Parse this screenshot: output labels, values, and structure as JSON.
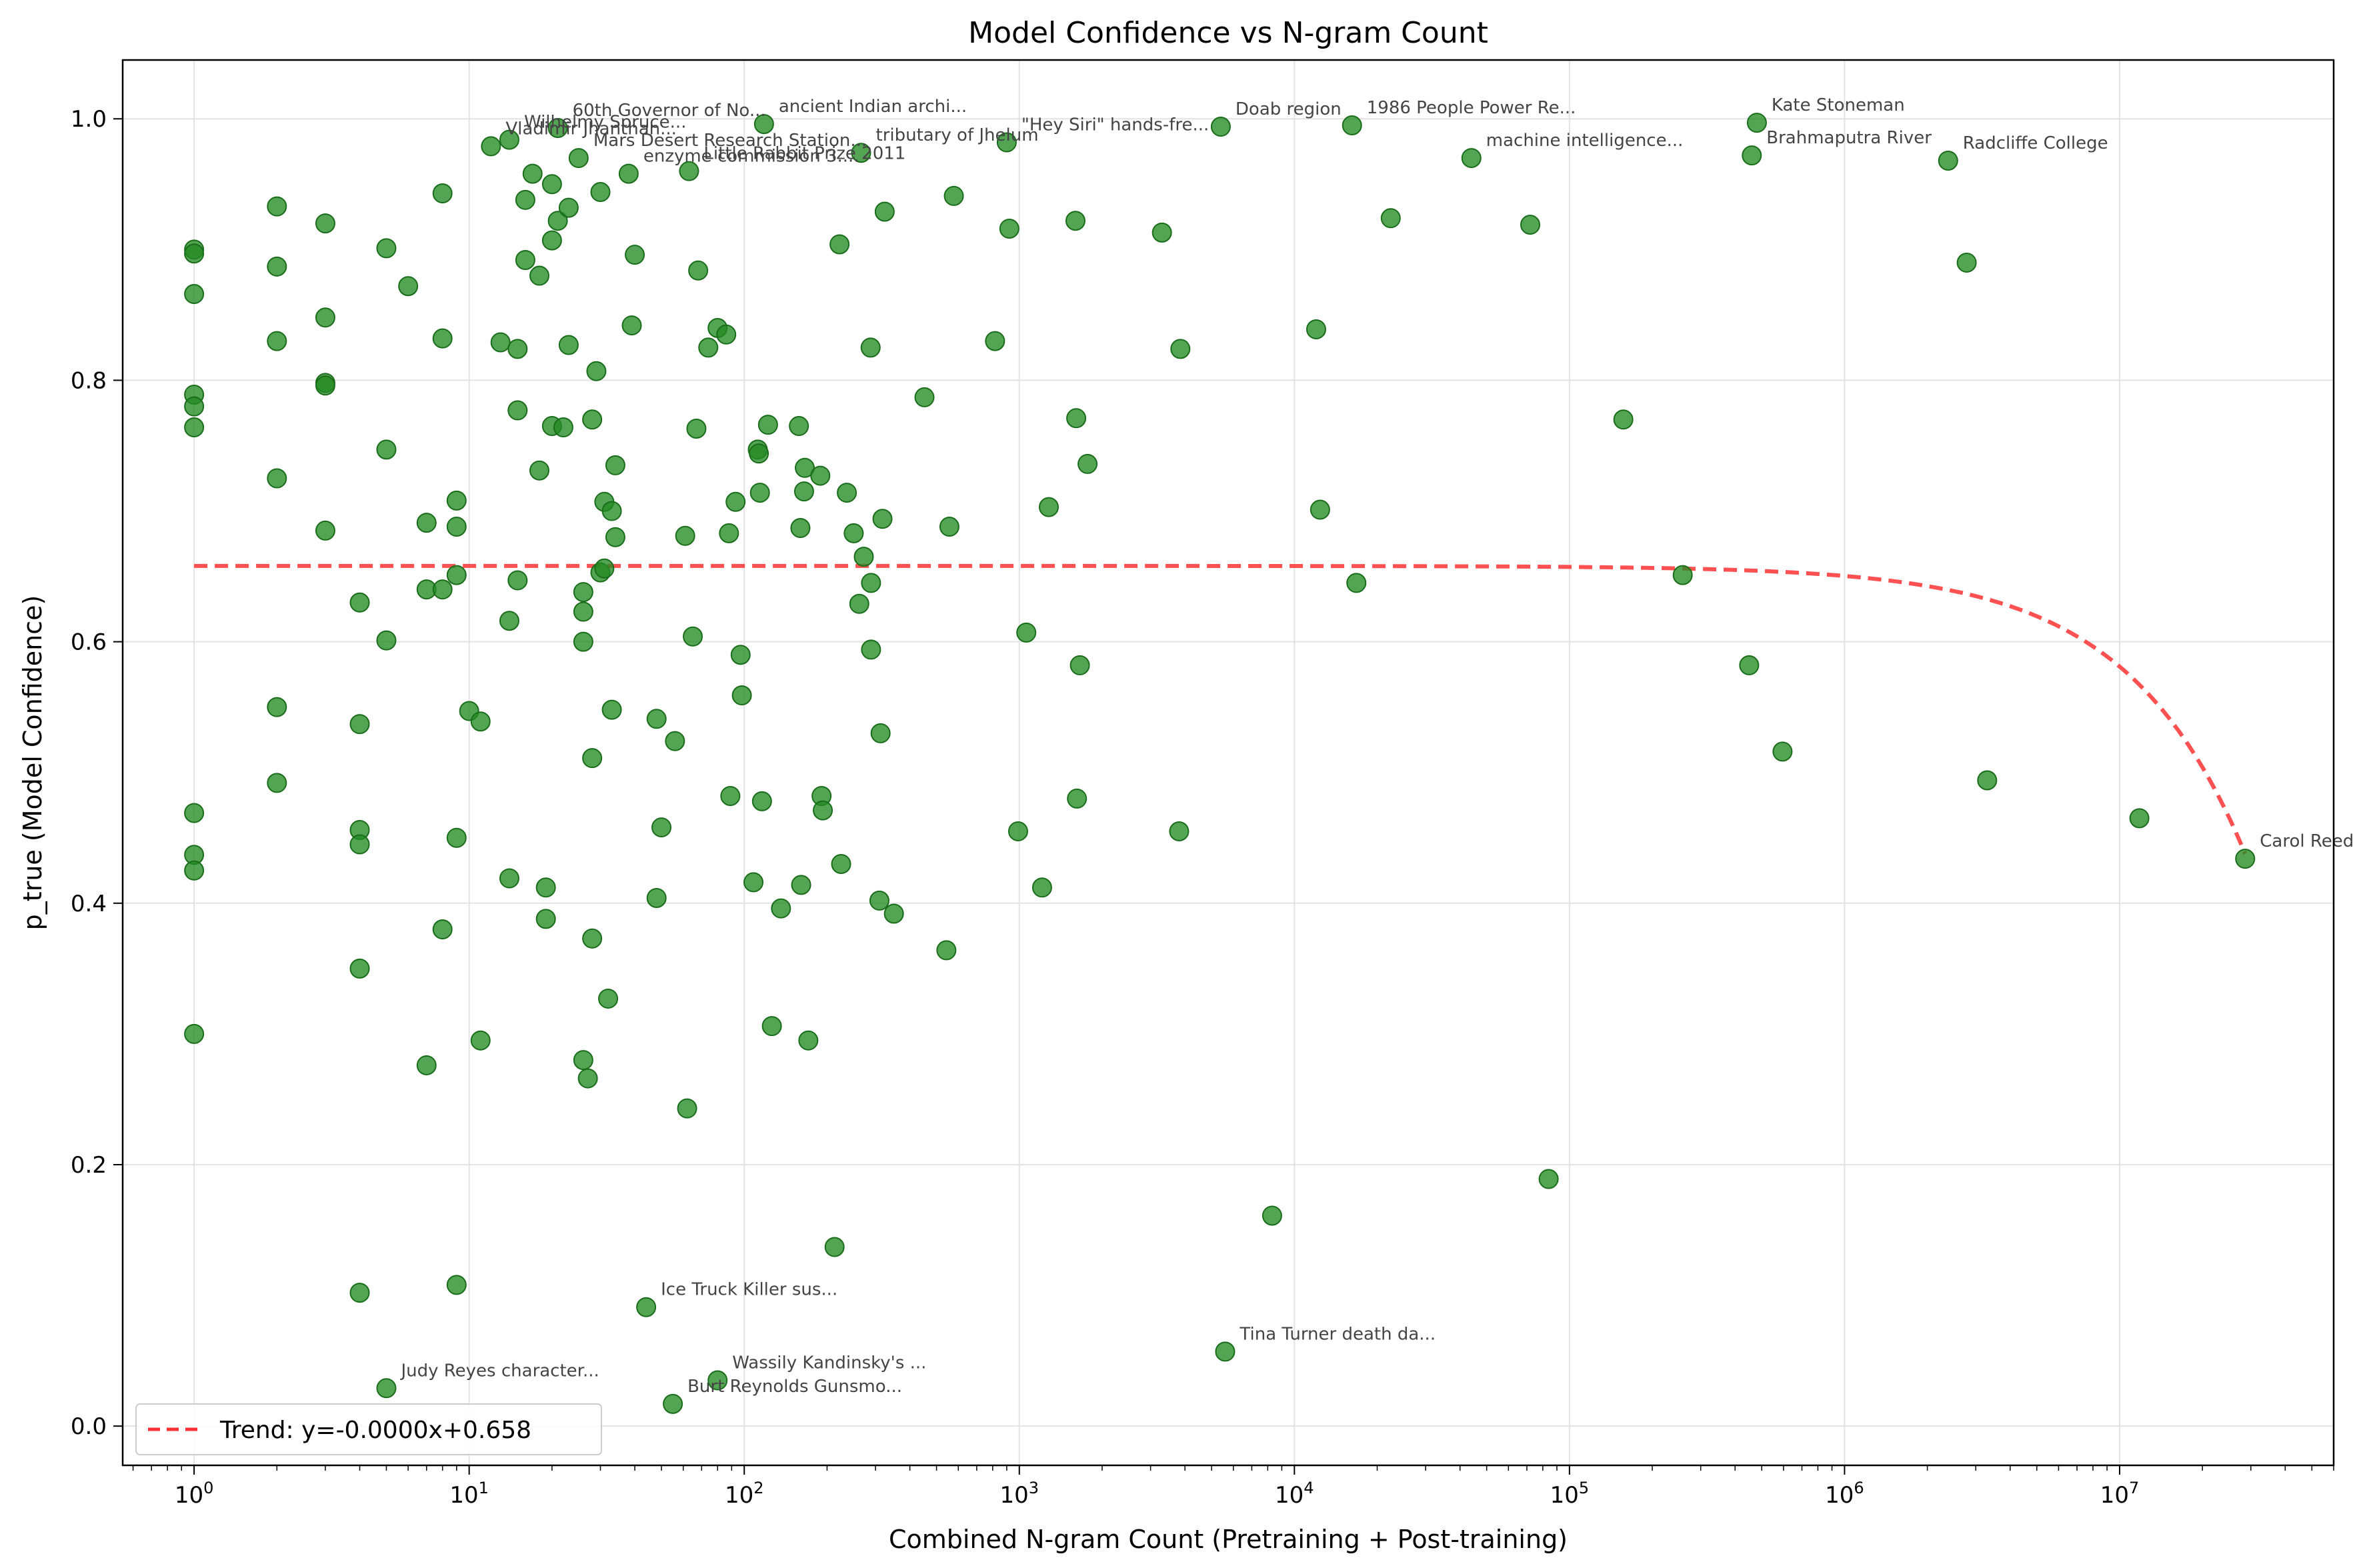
{
  "chart_data": {
    "type": "scatter",
    "title": "Model Confidence vs N-gram Count",
    "xlabel": "Combined N-gram Count (Pretraining + Post-training)",
    "ylabel": "p_true (Model Confidence)",
    "xscale": "log",
    "xlim": [
      0.55,
      60000000
    ],
    "ylim": [
      -0.03,
      1.045
    ],
    "x_ticks": [
      1,
      10,
      100,
      1000,
      10000,
      100000,
      1000000,
      10000000
    ],
    "x_tick_labels": [
      {
        "base": "10",
        "exp": "0"
      },
      {
        "base": "10",
        "exp": "1"
      },
      {
        "base": "10",
        "exp": "2"
      },
      {
        "base": "10",
        "exp": "3"
      },
      {
        "base": "10",
        "exp": "4"
      },
      {
        "base": "10",
        "exp": "5"
      },
      {
        "base": "10",
        "exp": "6"
      },
      {
        "base": "10",
        "exp": "7"
      }
    ],
    "y_ticks": [
      0.0,
      0.2,
      0.4,
      0.6,
      0.8,
      1.0
    ],
    "y_tick_labels": [
      "0.0",
      "0.2",
      "0.4",
      "0.6",
      "0.8",
      "1.0"
    ],
    "grid": true,
    "legend_position": "bottom-left",
    "point_color": "#228B22",
    "trend_color": "#ff3333",
    "trend": {
      "label": "Trend: y=-0.0000x+0.658",
      "slope": -7.7e-09,
      "intercept": 0.658
    },
    "points": [
      {
        "x": 1,
        "y": 0.9
      },
      {
        "x": 1,
        "y": 0.897
      },
      {
        "x": 1,
        "y": 0.866
      },
      {
        "x": 1,
        "y": 0.789
      },
      {
        "x": 1,
        "y": 0.78
      },
      {
        "x": 1,
        "y": 0.764
      },
      {
        "x": 1,
        "y": 0.469
      },
      {
        "x": 1,
        "y": 0.437
      },
      {
        "x": 1,
        "y": 0.425
      },
      {
        "x": 1,
        "y": 0.3
      },
      {
        "x": 2,
        "y": 0.933
      },
      {
        "x": 2,
        "y": 0.887
      },
      {
        "x": 2,
        "y": 0.83
      },
      {
        "x": 2,
        "y": 0.725
      },
      {
        "x": 2,
        "y": 0.55
      },
      {
        "x": 2,
        "y": 0.492
      },
      {
        "x": 3,
        "y": 0.92
      },
      {
        "x": 3,
        "y": 0.848
      },
      {
        "x": 3,
        "y": 0.798
      },
      {
        "x": 3,
        "y": 0.796
      },
      {
        "x": 3,
        "y": 0.685
      },
      {
        "x": 4,
        "y": 0.63
      },
      {
        "x": 4,
        "y": 0.537
      },
      {
        "x": 4,
        "y": 0.456
      },
      {
        "x": 4,
        "y": 0.445
      },
      {
        "x": 4,
        "y": 0.35
      },
      {
        "x": 4,
        "y": 0.102
      },
      {
        "x": 5,
        "y": 0.901
      },
      {
        "x": 5,
        "y": 0.747
      },
      {
        "x": 5,
        "y": 0.601
      },
      {
        "x": 5,
        "y": 0.029
      },
      {
        "x": 6,
        "y": 0.872
      },
      {
        "x": 7,
        "y": 0.691
      },
      {
        "x": 7,
        "y": 0.64
      },
      {
        "x": 7,
        "y": 0.276
      },
      {
        "x": 8,
        "y": 0.943
      },
      {
        "x": 8,
        "y": 0.832
      },
      {
        "x": 8,
        "y": 0.64
      },
      {
        "x": 8,
        "y": 0.38
      },
      {
        "x": 9,
        "y": 0.708
      },
      {
        "x": 9,
        "y": 0.688
      },
      {
        "x": 9,
        "y": 0.651
      },
      {
        "x": 9,
        "y": 0.45
      },
      {
        "x": 9,
        "y": 0.108
      },
      {
        "x": 10,
        "y": 0.547
      },
      {
        "x": 11,
        "y": 0.539
      },
      {
        "x": 11,
        "y": 0.295
      },
      {
        "x": 12,
        "y": 0.979
      },
      {
        "x": 13,
        "y": 0.829
      },
      {
        "x": 14,
        "y": 0.984
      },
      {
        "x": 14,
        "y": 0.616
      },
      {
        "x": 14,
        "y": 0.419
      },
      {
        "x": 15,
        "y": 0.824
      },
      {
        "x": 15,
        "y": 0.777
      },
      {
        "x": 15,
        "y": 0.647
      },
      {
        "x": 16,
        "y": 0.938
      },
      {
        "x": 16,
        "y": 0.892
      },
      {
        "x": 17,
        "y": 0.958
      },
      {
        "x": 18,
        "y": 0.88
      },
      {
        "x": 18,
        "y": 0.731
      },
      {
        "x": 19,
        "y": 0.412
      },
      {
        "x": 19,
        "y": 0.388
      },
      {
        "x": 20,
        "y": 0.95
      },
      {
        "x": 20,
        "y": 0.907
      },
      {
        "x": 20,
        "y": 0.765
      },
      {
        "x": 21,
        "y": 0.993
      },
      {
        "x": 21,
        "y": 0.922
      },
      {
        "x": 22,
        "y": 0.764
      },
      {
        "x": 23,
        "y": 0.932
      },
      {
        "x": 23,
        "y": 0.827
      },
      {
        "x": 25,
        "y": 0.97
      },
      {
        "x": 26,
        "y": 0.638
      },
      {
        "x": 26,
        "y": 0.623
      },
      {
        "x": 26,
        "y": 0.6
      },
      {
        "x": 26,
        "y": 0.28
      },
      {
        "x": 27,
        "y": 0.266
      },
      {
        "x": 28,
        "y": 0.77
      },
      {
        "x": 28,
        "y": 0.511
      },
      {
        "x": 28,
        "y": 0.373
      },
      {
        "x": 29,
        "y": 0.807
      },
      {
        "x": 30,
        "y": 0.944
      },
      {
        "x": 30,
        "y": 0.653
      },
      {
        "x": 31,
        "y": 0.707
      },
      {
        "x": 31,
        "y": 0.656
      },
      {
        "x": 32,
        "y": 0.327
      },
      {
        "x": 33,
        "y": 0.7
      },
      {
        "x": 33,
        "y": 0.548
      },
      {
        "x": 34,
        "y": 0.735
      },
      {
        "x": 34,
        "y": 0.68
      },
      {
        "x": 38,
        "y": 0.958
      },
      {
        "x": 39,
        "y": 0.842
      },
      {
        "x": 40,
        "y": 0.896
      },
      {
        "x": 44,
        "y": 0.091
      },
      {
        "x": 48,
        "y": 0.541
      },
      {
        "x": 48,
        "y": 0.404
      },
      {
        "x": 50,
        "y": 0.458
      },
      {
        "x": 55,
        "y": 0.017
      },
      {
        "x": 56,
        "y": 0.524
      },
      {
        "x": 61,
        "y": 0.681
      },
      {
        "x": 62,
        "y": 0.243
      },
      {
        "x": 63,
        "y": 0.96
      },
      {
        "x": 65,
        "y": 0.604
      },
      {
        "x": 67,
        "y": 0.763
      },
      {
        "x": 68,
        "y": 0.884
      },
      {
        "x": 74,
        "y": 0.825
      },
      {
        "x": 80,
        "y": 0.84
      },
      {
        "x": 80,
        "y": 0.035
      },
      {
        "x": 86,
        "y": 0.835
      },
      {
        "x": 88,
        "y": 0.683
      },
      {
        "x": 89,
        "y": 0.482
      },
      {
        "x": 93,
        "y": 0.707
      },
      {
        "x": 97,
        "y": 0.59
      },
      {
        "x": 98,
        "y": 0.559
      },
      {
        "x": 108,
        "y": 0.416
      },
      {
        "x": 112,
        "y": 0.747
      },
      {
        "x": 113,
        "y": 0.744
      },
      {
        "x": 114,
        "y": 0.714
      },
      {
        "x": 116,
        "y": 0.478
      },
      {
        "x": 118,
        "y": 0.996
      },
      {
        "x": 122,
        "y": 0.766
      },
      {
        "x": 126,
        "y": 0.306
      },
      {
        "x": 136,
        "y": 0.396
      },
      {
        "x": 158,
        "y": 0.765
      },
      {
        "x": 160,
        "y": 0.687
      },
      {
        "x": 161,
        "y": 0.414
      },
      {
        "x": 165,
        "y": 0.715
      },
      {
        "x": 166,
        "y": 0.733
      },
      {
        "x": 171,
        "y": 0.295
      },
      {
        "x": 189,
        "y": 0.727
      },
      {
        "x": 191,
        "y": 0.482
      },
      {
        "x": 193,
        "y": 0.471
      },
      {
        "x": 213,
        "y": 0.137
      },
      {
        "x": 222,
        "y": 0.904
      },
      {
        "x": 225,
        "y": 0.43
      },
      {
        "x": 236,
        "y": 0.714
      },
      {
        "x": 250,
        "y": 0.683
      },
      {
        "x": 262,
        "y": 0.629
      },
      {
        "x": 266,
        "y": 0.974
      },
      {
        "x": 272,
        "y": 0.665
      },
      {
        "x": 288,
        "y": 0.825
      },
      {
        "x": 289,
        "y": 0.645
      },
      {
        "x": 289,
        "y": 0.594
      },
      {
        "x": 310,
        "y": 0.402
      },
      {
        "x": 313,
        "y": 0.53
      },
      {
        "x": 318,
        "y": 0.694
      },
      {
        "x": 324,
        "y": 0.929
      },
      {
        "x": 350,
        "y": 0.392
      },
      {
        "x": 452,
        "y": 0.787
      },
      {
        "x": 543,
        "y": 0.364
      },
      {
        "x": 557,
        "y": 0.688
      },
      {
        "x": 578,
        "y": 0.941
      },
      {
        "x": 816,
        "y": 0.83
      },
      {
        "x": 900,
        "y": 0.982
      },
      {
        "x": 920,
        "y": 0.916
      },
      {
        "x": 990,
        "y": 0.455
      },
      {
        "x": 1060,
        "y": 0.607
      },
      {
        "x": 1210,
        "y": 0.412
      },
      {
        "x": 1280,
        "y": 0.703
      },
      {
        "x": 1600,
        "y": 0.922
      },
      {
        "x": 1610,
        "y": 0.771
      },
      {
        "x": 1620,
        "y": 0.48
      },
      {
        "x": 1660,
        "y": 0.582
      },
      {
        "x": 1770,
        "y": 0.736
      },
      {
        "x": 3300,
        "y": 0.913
      },
      {
        "x": 3810,
        "y": 0.455
      },
      {
        "x": 3850,
        "y": 0.824
      },
      {
        "x": 5400,
        "y": 0.994
      },
      {
        "x": 5600,
        "y": 0.057
      },
      {
        "x": 8300,
        "y": 0.161
      },
      {
        "x": 12000,
        "y": 0.839
      },
      {
        "x": 12400,
        "y": 0.701
      },
      {
        "x": 16200,
        "y": 0.995
      },
      {
        "x": 16800,
        "y": 0.645
      },
      {
        "x": 22400,
        "y": 0.924
      },
      {
        "x": 44000,
        "y": 0.97
      },
      {
        "x": 72000,
        "y": 0.919
      },
      {
        "x": 84000,
        "y": 0.189
      },
      {
        "x": 157000,
        "y": 0.77
      },
      {
        "x": 258000,
        "y": 0.651
      },
      {
        "x": 450000,
        "y": 0.582
      },
      {
        "x": 460000,
        "y": 0.972
      },
      {
        "x": 480000,
        "y": 0.997
      },
      {
        "x": 595000,
        "y": 0.516
      },
      {
        "x": 2380000,
        "y": 0.968
      },
      {
        "x": 2780000,
        "y": 0.89
      },
      {
        "x": 3300000,
        "y": 0.494
      },
      {
        "x": 11800000,
        "y": 0.465
      },
      {
        "x": 28600000,
        "y": 0.434
      }
    ],
    "annotations": [
      {
        "x": 21,
        "y": 0.993,
        "text": "60th Governor of No..."
      },
      {
        "x": 118,
        "y": 0.996,
        "text": "ancient Indian archi..."
      },
      {
        "x": 14,
        "y": 0.984,
        "text": "Wilhelmy Spruce..."
      },
      {
        "x": 12,
        "y": 0.979,
        "text": "Vladimir Jhanthan..."
      },
      {
        "x": 25,
        "y": 0.97,
        "text": "Mars Desert Research Station..."
      },
      {
        "x": 38,
        "y": 0.958,
        "text": "enzyme commission 3...."
      },
      {
        "x": 63,
        "y": 0.96,
        "text": "Little Rabbit Prize 2011"
      },
      {
        "x": 266,
        "y": 0.974,
        "text": "tributary of Jhelum"
      },
      {
        "x": 900,
        "y": 0.982,
        "text": "\"Hey Siri\" hands-fre..."
      },
      {
        "x": 5400,
        "y": 0.994,
        "text": "Doab region"
      },
      {
        "x": 16200,
        "y": 0.995,
        "text": "1986 People Power Re..."
      },
      {
        "x": 44000,
        "y": 0.97,
        "text": "machine intelligence..."
      },
      {
        "x": 480000,
        "y": 0.997,
        "text": "Kate Stoneman"
      },
      {
        "x": 460000,
        "y": 0.972,
        "text": "Brahmaputra River"
      },
      {
        "x": 2380000,
        "y": 0.968,
        "text": "Radcliffe College"
      },
      {
        "x": 28600000,
        "y": 0.434,
        "text": "Carol Reed"
      },
      {
        "x": 44,
        "y": 0.091,
        "text": "Ice Truck Killer sus..."
      },
      {
        "x": 5600,
        "y": 0.057,
        "text": "Tina Turner death da..."
      },
      {
        "x": 80,
        "y": 0.035,
        "text": "Wassily Kandinsky's ..."
      },
      {
        "x": 55,
        "y": 0.017,
        "text": "Burt Reynolds Gunsmo..."
      },
      {
        "x": 5,
        "y": 0.029,
        "text": "Judy Reyes character..."
      }
    ]
  }
}
